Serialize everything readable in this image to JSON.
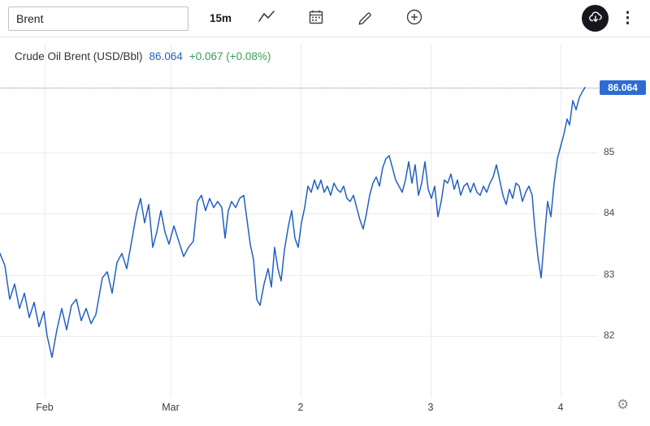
{
  "toolbar": {
    "search_value": "Brent",
    "interval_label": "15m"
  },
  "icons": {
    "more_menu_glyph": "⋮",
    "gear_glyph": "⚙"
  },
  "header": {
    "title": "Crude Oil Brent (USD/Bbl)",
    "price": "86.064",
    "change": "+0.067 (+0.08%)"
  },
  "colors": {
    "line": "#2160c4",
    "badge": "#2e6bd3",
    "price_text": "#2263c3",
    "change_text": "#359e54",
    "grid": "#ebebeb"
  },
  "chart_data": {
    "type": "line",
    "title": "Crude Oil Brent (USD/Bbl)",
    "unit": "USD/Bbl",
    "interval": "15m",
    "last_price": 86.064,
    "change_abs": "+0.067",
    "change_pct": "+0.08%",
    "line_color": "#2160c4",
    "current_price_line": 86.064,
    "grid": true,
    "y_axis": {
      "side": "right",
      "ticks": [
        85,
        84,
        83,
        82
      ],
      "approx_range": [
        81.0,
        86.25
      ]
    },
    "x_axis": {
      "domain": [
        0,
        735
      ],
      "ticks": [
        {
          "label": "Feb",
          "x": 55
        },
        {
          "label": "Mar",
          "x": 210
        },
        {
          "label": "2",
          "x": 370
        },
        {
          "label": "3",
          "x": 530
        },
        {
          "label": "4",
          "x": 690
        }
      ]
    },
    "series": [
      {
        "name": "Brent",
        "points": [
          [
            0,
            83.35
          ],
          [
            6,
            83.15
          ],
          [
            12,
            82.6
          ],
          [
            18,
            82.85
          ],
          [
            24,
            82.45
          ],
          [
            30,
            82.7
          ],
          [
            36,
            82.3
          ],
          [
            42,
            82.55
          ],
          [
            48,
            82.15
          ],
          [
            54,
            82.4
          ],
          [
            58,
            82.0
          ],
          [
            64,
            81.65
          ],
          [
            70,
            82.1
          ],
          [
            76,
            82.45
          ],
          [
            82,
            82.1
          ],
          [
            88,
            82.5
          ],
          [
            94,
            82.6
          ],
          [
            100,
            82.25
          ],
          [
            106,
            82.45
          ],
          [
            112,
            82.2
          ],
          [
            118,
            82.35
          ],
          [
            126,
            82.95
          ],
          [
            132,
            83.05
          ],
          [
            138,
            82.7
          ],
          [
            144,
            83.2
          ],
          [
            150,
            83.35
          ],
          [
            156,
            83.1
          ],
          [
            162,
            83.55
          ],
          [
            168,
            84.0
          ],
          [
            173,
            84.25
          ],
          [
            178,
            83.85
          ],
          [
            183,
            84.15
          ],
          [
            188,
            83.45
          ],
          [
            193,
            83.7
          ],
          [
            198,
            84.05
          ],
          [
            203,
            83.7
          ],
          [
            208,
            83.5
          ],
          [
            214,
            83.8
          ],
          [
            220,
            83.55
          ],
          [
            226,
            83.3
          ],
          [
            232,
            83.45
          ],
          [
            238,
            83.55
          ],
          [
            243,
            84.2
          ],
          [
            248,
            84.3
          ],
          [
            253,
            84.05
          ],
          [
            258,
            84.25
          ],
          [
            263,
            84.1
          ],
          [
            268,
            84.2
          ],
          [
            273,
            84.1
          ],
          [
            277,
            83.6
          ],
          [
            281,
            84.05
          ],
          [
            285,
            84.2
          ],
          [
            290,
            84.1
          ],
          [
            295,
            84.25
          ],
          [
            300,
            84.3
          ],
          [
            304,
            83.9
          ],
          [
            308,
            83.5
          ],
          [
            312,
            83.25
          ],
          [
            316,
            82.6
          ],
          [
            320,
            82.5
          ],
          [
            325,
            82.85
          ],
          [
            330,
            83.1
          ],
          [
            334,
            82.8
          ],
          [
            338,
            83.45
          ],
          [
            342,
            83.1
          ],
          [
            346,
            82.9
          ],
          [
            350,
            83.4
          ],
          [
            355,
            83.8
          ],
          [
            359,
            84.05
          ],
          [
            363,
            83.6
          ],
          [
            367,
            83.45
          ],
          [
            371,
            83.85
          ],
          [
            375,
            84.1
          ],
          [
            379,
            84.45
          ],
          [
            383,
            84.35
          ],
          [
            387,
            84.55
          ],
          [
            391,
            84.4
          ],
          [
            395,
            84.55
          ],
          [
            399,
            84.35
          ],
          [
            403,
            84.45
          ],
          [
            407,
            84.3
          ],
          [
            411,
            84.5
          ],
          [
            415,
            84.4
          ],
          [
            419,
            84.35
          ],
          [
            423,
            84.45
          ],
          [
            427,
            84.25
          ],
          [
            431,
            84.2
          ],
          [
            435,
            84.3
          ],
          [
            439,
            84.1
          ],
          [
            443,
            83.9
          ],
          [
            447,
            83.75
          ],
          [
            451,
            84.0
          ],
          [
            455,
            84.3
          ],
          [
            459,
            84.5
          ],
          [
            463,
            84.6
          ],
          [
            467,
            84.45
          ],
          [
            471,
            84.75
          ],
          [
            475,
            84.9
          ],
          [
            479,
            84.95
          ],
          [
            483,
            84.75
          ],
          [
            487,
            84.55
          ],
          [
            491,
            84.45
          ],
          [
            495,
            84.35
          ],
          [
            499,
            84.55
          ],
          [
            503,
            84.85
          ],
          [
            507,
            84.5
          ],
          [
            511,
            84.8
          ],
          [
            515,
            84.3
          ],
          [
            519,
            84.5
          ],
          [
            523,
            84.85
          ],
          [
            527,
            84.4
          ],
          [
            531,
            84.25
          ],
          [
            535,
            84.45
          ],
          [
            539,
            83.95
          ],
          [
            543,
            84.2
          ],
          [
            547,
            84.55
          ],
          [
            551,
            84.5
          ],
          [
            555,
            84.65
          ],
          [
            559,
            84.4
          ],
          [
            563,
            84.55
          ],
          [
            567,
            84.3
          ],
          [
            571,
            84.45
          ],
          [
            575,
            84.5
          ],
          [
            579,
            84.35
          ],
          [
            583,
            84.5
          ],
          [
            587,
            84.35
          ],
          [
            591,
            84.3
          ],
          [
            595,
            84.45
          ],
          [
            599,
            84.35
          ],
          [
            603,
            84.5
          ],
          [
            607,
            84.6
          ],
          [
            611,
            84.8
          ],
          [
            615,
            84.55
          ],
          [
            619,
            84.3
          ],
          [
            623,
            84.15
          ],
          [
            627,
            84.4
          ],
          [
            631,
            84.25
          ],
          [
            635,
            84.5
          ],
          [
            639,
            84.45
          ],
          [
            643,
            84.2
          ],
          [
            647,
            84.35
          ],
          [
            651,
            84.45
          ],
          [
            655,
            84.3
          ],
          [
            658,
            83.8
          ],
          [
            662,
            83.3
          ],
          [
            666,
            82.95
          ],
          [
            670,
            83.6
          ],
          [
            674,
            84.2
          ],
          [
            678,
            83.95
          ],
          [
            682,
            84.5
          ],
          [
            686,
            84.9
          ],
          [
            690,
            85.1
          ],
          [
            694,
            85.3
          ],
          [
            698,
            85.55
          ],
          [
            701,
            85.45
          ],
          [
            705,
            85.85
          ],
          [
            709,
            85.7
          ],
          [
            713,
            85.9
          ],
          [
            717,
            86.0
          ],
          [
            720,
            86.064
          ]
        ]
      }
    ]
  }
}
